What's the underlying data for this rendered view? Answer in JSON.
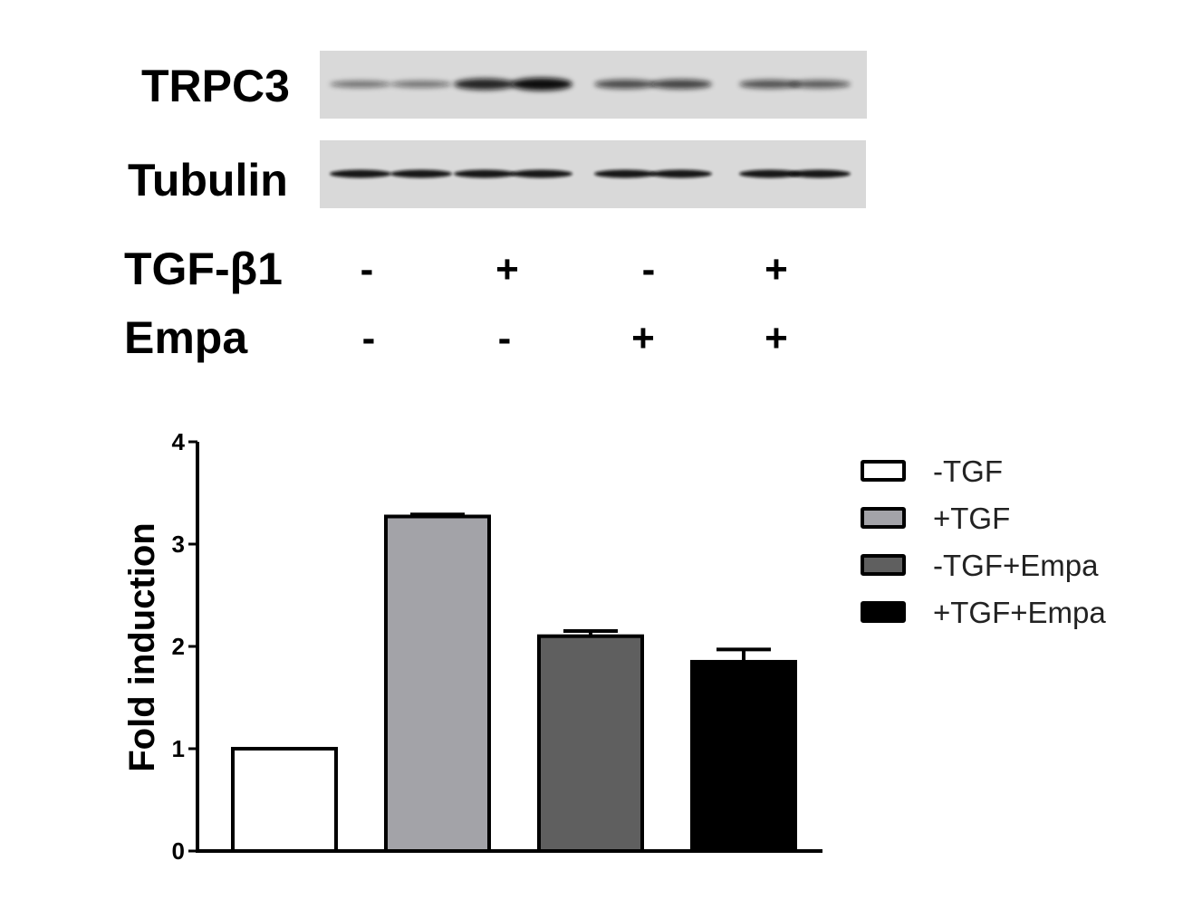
{
  "blot": {
    "rows": [
      {
        "label": "TRPC3",
        "intensities": [
          0.35,
          0.35,
          0.85,
          1.0,
          0.6,
          0.65,
          0.55,
          0.5
        ]
      },
      {
        "label": "Tubulin",
        "intensities": [
          0.9,
          0.9,
          0.9,
          0.9,
          0.9,
          0.9,
          0.9,
          0.9
        ]
      }
    ],
    "colors": {
      "background": "#d9d9d9",
      "band": "#111111"
    }
  },
  "treatments": [
    {
      "label": "TGF-β1",
      "signs": [
        "-",
        "+",
        "-",
        "+"
      ]
    },
    {
      "label": "Empa",
      "signs": [
        "-",
        "-",
        "+",
        "+"
      ]
    }
  ],
  "chart_data": {
    "type": "bar",
    "categories": [
      "-TGF",
      "+TGF",
      "-TGF+Empa",
      "+TGF+Empa"
    ],
    "values": [
      1.0,
      3.27,
      2.1,
      1.85
    ],
    "errors": [
      0.0,
      0.02,
      0.05,
      0.12
    ],
    "colors": [
      "#ffffff",
      "#a3a3a8",
      "#5f5f5f",
      "#000000"
    ],
    "ylabel": "Fold induction",
    "ylim": [
      0,
      4
    ],
    "yticks": [
      "0",
      "1",
      "2",
      "3",
      "4"
    ],
    "grid": false,
    "legend_position": "right"
  }
}
